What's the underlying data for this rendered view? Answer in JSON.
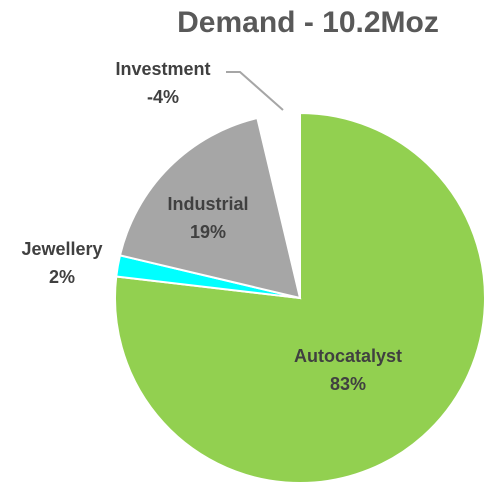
{
  "chart_data": {
    "type": "pie",
    "title": "Demand - 10.2Moz",
    "categories": [
      "Autocatalyst",
      "Jewellery",
      "Industrial",
      "Investment"
    ],
    "values": [
      83,
      2,
      19,
      -4
    ],
    "value_labels": [
      "83%",
      "2%",
      "19%",
      "-4%"
    ],
    "colors": [
      "#92d050",
      "#00ffff",
      "#a6a6a6",
      "#ffffff"
    ]
  }
}
